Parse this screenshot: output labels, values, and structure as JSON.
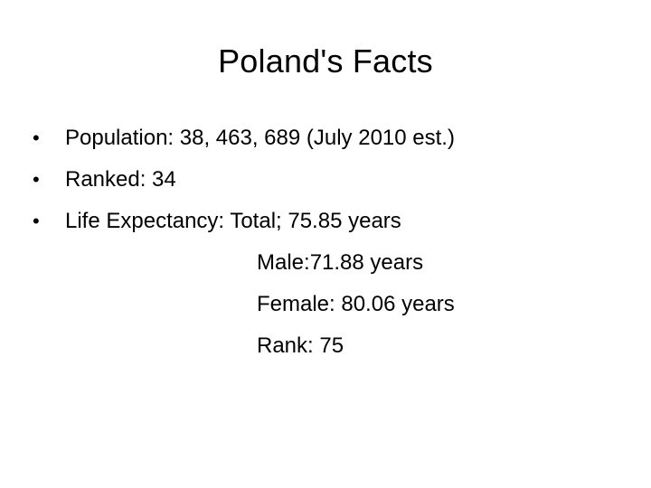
{
  "slide": {
    "title": "Poland's Facts",
    "bullet_glyph": "•",
    "bullets": [
      {
        "text": "Population: 38, 463, 689 (July 2010 est.)"
      },
      {
        "text": "Ranked: 34"
      },
      {
        "text": "Life Expectancy: Total; 75.85 years"
      }
    ],
    "life_expectancy_details": [
      "Male:71.88 years",
      "Female: 80.06 years",
      "Rank: 75"
    ]
  }
}
